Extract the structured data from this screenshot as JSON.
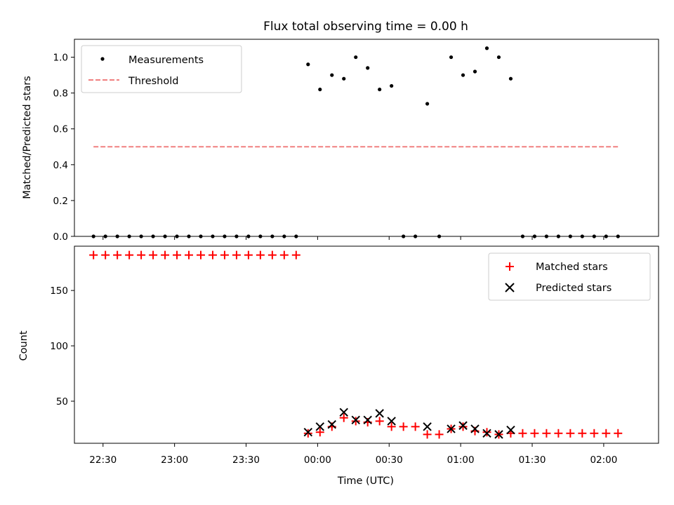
{
  "chart_data": [
    {
      "type": "scatter",
      "title": "Flux total observing time = 0.00 h",
      "xlabel": "",
      "ylabel": "Matched/Predicted stars",
      "ylim": [
        0,
        1.1
      ],
      "yticks": [
        "0.0",
        "0.2",
        "0.4",
        "0.6",
        "0.8",
        "1.0"
      ],
      "xticks": [
        "22:30",
        "23:00",
        "23:30",
        "00:00",
        "00:30",
        "01:00",
        "01:30",
        "02:00"
      ],
      "xlim": [
        "22:18",
        "02:23"
      ],
      "legend_position": "top-left",
      "series": [
        {
          "name": "Measurements",
          "marker": "dot",
          "color": "#000000",
          "x": [
            "22:26",
            "22:31",
            "22:36",
            "22:41",
            "22:46",
            "22:51",
            "22:56",
            "23:01",
            "23:06",
            "23:11",
            "23:16",
            "23:21",
            "23:26",
            "23:31",
            "23:36",
            "23:41",
            "23:46",
            "23:51",
            "23:56",
            "00:01",
            "00:06",
            "00:11",
            "00:16",
            "00:21",
            "00:26",
            "00:31",
            "00:36",
            "00:41",
            "00:46",
            "00:51",
            "00:56",
            "01:01",
            "01:06",
            "01:11",
            "01:16",
            "01:21",
            "01:26",
            "01:31",
            "01:36",
            "01:41",
            "01:46",
            "01:51",
            "01:56",
            "02:01",
            "02:06"
          ],
          "y": [
            0,
            0,
            0,
            0,
            0,
            0,
            0,
            0,
            0,
            0,
            0,
            0,
            0,
            0,
            0,
            0,
            0,
            0,
            0.96,
            0.82,
            0.9,
            0.88,
            1.0,
            0.94,
            0.82,
            0.84,
            0,
            0,
            0.74,
            0,
            1.0,
            0.9,
            0.92,
            1.05,
            1.0,
            0.88,
            0,
            0,
            0,
            0,
            0,
            0,
            0,
            0,
            0
          ]
        },
        {
          "name": "Threshold",
          "type": "line",
          "style": "dashed",
          "color": "#f08080",
          "x": [
            "22:26",
            "02:06"
          ],
          "y": [
            0.5,
            0.5
          ]
        }
      ]
    },
    {
      "type": "scatter",
      "title": "",
      "xlabel": "Time (UTC)",
      "ylabel": "Count",
      "ylim": [
        12,
        190
      ],
      "yticks": [
        "50",
        "100",
        "150"
      ],
      "xticks": [
        "22:30",
        "23:00",
        "23:30",
        "00:00",
        "00:30",
        "01:00",
        "01:30",
        "02:00"
      ],
      "xlim": [
        "22:18",
        "02:23"
      ],
      "legend_position": "top-right",
      "series": [
        {
          "name": "Matched stars",
          "marker": "plus",
          "color": "#ff0000",
          "x": [
            "22:26",
            "22:31",
            "22:36",
            "22:41",
            "22:46",
            "22:51",
            "22:56",
            "23:01",
            "23:06",
            "23:11",
            "23:16",
            "23:21",
            "23:26",
            "23:31",
            "23:36",
            "23:41",
            "23:46",
            "23:51",
            "23:56",
            "00:01",
            "00:06",
            "00:11",
            "00:16",
            "00:21",
            "00:26",
            "00:31",
            "00:36",
            "00:41",
            "00:46",
            "00:51",
            "00:56",
            "01:01",
            "01:06",
            "01:11",
            "01:16",
            "01:21",
            "01:26",
            "01:31",
            "01:36",
            "01:41",
            "01:46",
            "01:51",
            "01:56",
            "02:01",
            "02:06"
          ],
          "y": [
            182,
            182,
            182,
            182,
            182,
            182,
            182,
            182,
            182,
            182,
            182,
            182,
            182,
            182,
            182,
            182,
            182,
            182,
            21,
            22,
            27,
            35,
            32,
            31,
            32,
            27,
            27,
            27,
            20,
            20,
            25,
            27,
            23,
            22,
            20,
            21,
            21,
            21,
            21,
            21,
            21,
            21,
            21,
            21,
            21
          ]
        },
        {
          "name": "Predicted stars",
          "marker": "x",
          "color": "#000000",
          "x": [
            "23:56",
            "00:01",
            "00:06",
            "00:11",
            "00:16",
            "00:21",
            "00:26",
            "00:31",
            "00:46",
            "00:56",
            "01:01",
            "01:06",
            "01:11",
            "01:16",
            "01:21"
          ],
          "y": [
            22,
            27,
            29,
            40,
            33,
            33,
            39,
            32,
            27,
            25,
            28,
            25,
            21,
            20,
            24
          ]
        }
      ]
    }
  ]
}
